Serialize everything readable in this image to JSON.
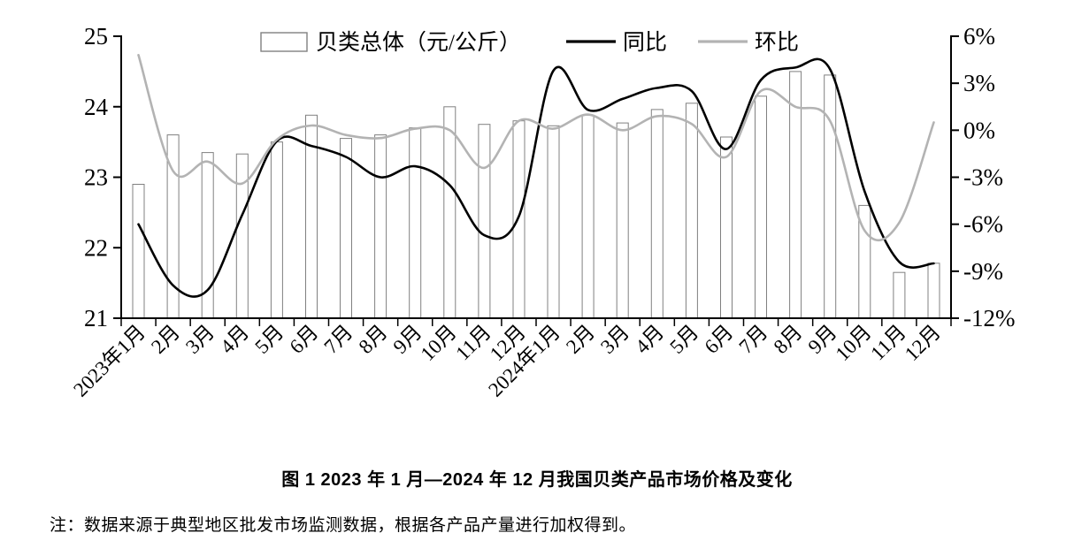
{
  "figure": {
    "caption": "图 1  2023 年 1 月—2024 年 12 月我国贝类产品市场价格及变化",
    "note": "注：数据来源于典型地区批发市场监测数据，根据各产品产量进行加权得到。"
  },
  "chart_data": {
    "type": "combo-bar-line",
    "title": "",
    "grid": false,
    "legend_position": "top",
    "legend": [
      "贝类总体（元/公斤）",
      "同比",
      "环比"
    ],
    "categories": [
      "2023年1月",
      "2月",
      "3月",
      "4月",
      "5月",
      "6月",
      "7月",
      "8月",
      "9月",
      "10月",
      "11月",
      "12月",
      "2024年1月",
      "2月",
      "3月",
      "4月",
      "5月",
      "6月",
      "7月",
      "8月",
      "9月",
      "10月",
      "11月",
      "12月"
    ],
    "series": [
      {
        "name": "贝类总体（元/公斤）",
        "type": "bar",
        "axis": "left",
        "fill": "#ffffff",
        "stroke": "#808080",
        "values": [
          22.9,
          23.6,
          23.35,
          23.33,
          23.5,
          23.88,
          23.55,
          23.6,
          23.7,
          24.0,
          23.75,
          23.8,
          23.73,
          23.88,
          23.77,
          23.96,
          24.05,
          23.57,
          24.15,
          24.5,
          24.45,
          22.6,
          21.65,
          21.78
        ]
      },
      {
        "name": "同比",
        "type": "line",
        "axis": "right",
        "color": "#000000",
        "values": [
          -6.0,
          -9.9,
          -10.2,
          -5.4,
          -0.7,
          -1.0,
          -1.7,
          -3.0,
          -2.3,
          -3.5,
          -6.7,
          -5.5,
          3.8,
          1.3,
          2.0,
          2.7,
          2.5,
          -1.2,
          3.2,
          4.0,
          3.9,
          -3.9,
          -8.4,
          -8.5
        ]
      },
      {
        "name": "环比",
        "type": "line",
        "axis": "right",
        "color": "#b3b3b3",
        "values": [
          4.8,
          -2.6,
          -2.0,
          -3.4,
          -0.6,
          0.3,
          -0.3,
          -0.5,
          0.1,
          0.0,
          -2.4,
          0.6,
          0.1,
          1.0,
          0.0,
          0.9,
          0.4,
          -1.7,
          2.5,
          1.5,
          0.6,
          -6.4,
          -5.9,
          0.5
        ]
      }
    ],
    "left_axis": {
      "min": 21,
      "max": 25,
      "tick_labels": [
        "25",
        "24",
        "23",
        "22",
        "21"
      ],
      "tick_values": [
        25,
        24,
        23,
        22,
        21
      ]
    },
    "right_axis": {
      "min": -12,
      "max": 6,
      "tick_labels": [
        "6%",
        "3%",
        "0%",
        "-3%",
        "-6%",
        "-9%",
        "-12%"
      ],
      "tick_values": [
        6,
        3,
        0,
        -3,
        -6,
        -9,
        -12
      ]
    }
  }
}
